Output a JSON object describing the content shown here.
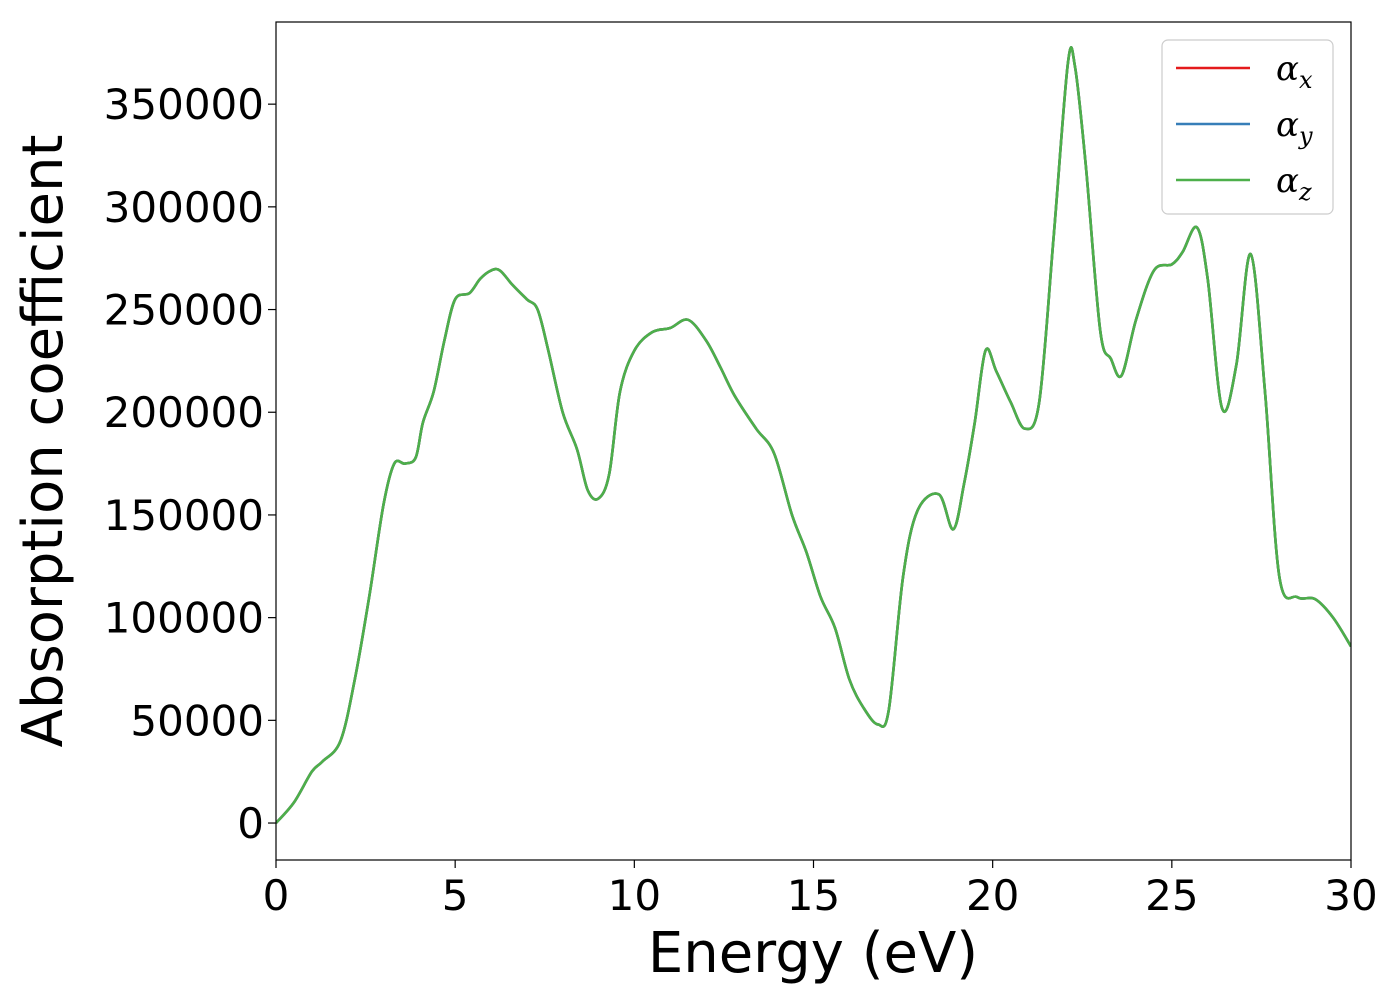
{
  "chart_data": {
    "type": "line",
    "xlabel": "Energy (eV)",
    "ylabel": "Absorption coefficient",
    "xlim": [
      0,
      30
    ],
    "ylim": [
      -18000,
      390000
    ],
    "xticks": [
      0,
      5,
      10,
      15,
      20,
      25,
      30
    ],
    "yticks": [
      0,
      50000,
      100000,
      150000,
      200000,
      250000,
      300000,
      350000
    ],
    "grid": false,
    "legend_position": "top-right",
    "series": [
      {
        "name": "α",
        "subscript": "x",
        "color": "#e41a1c"
      },
      {
        "name": "α",
        "subscript": "y",
        "color": "#377eb8"
      },
      {
        "name": "α",
        "subscript": "z",
        "color": "#4daf4a"
      }
    ],
    "x": [
      0,
      0.5,
      1.0,
      1.3,
      1.8,
      2.2,
      2.6,
      3.0,
      3.3,
      3.6,
      3.9,
      4.1,
      4.4,
      4.7,
      5.0,
      5.4,
      5.7,
      6.0,
      6.25,
      6.6,
      7.0,
      7.3,
      7.6,
      8.0,
      8.4,
      8.7,
      9.0,
      9.3,
      9.6,
      10.0,
      10.5,
      11.0,
      11.5,
      12.0,
      12.4,
      12.8,
      13.4,
      13.9,
      14.4,
      14.8,
      15.2,
      15.6,
      16.0,
      16.4,
      16.8,
      17.1,
      17.5,
      17.9,
      18.5,
      18.9,
      19.2,
      19.5,
      19.8,
      20.1,
      20.5,
      20.9,
      21.3,
      21.7,
      22.1,
      22.3,
      22.6,
      23.0,
      23.3,
      23.6,
      24.0,
      24.5,
      25.0,
      25.3,
      25.7,
      26.0,
      26.4,
      26.8,
      27.2,
      27.6,
      28.0,
      28.5,
      29.0,
      29.5,
      30.0
    ],
    "values": [
      0,
      10000,
      25000,
      30000,
      40000,
      70000,
      110000,
      155000,
      175000,
      175000,
      178000,
      195000,
      210000,
      235000,
      255000,
      258000,
      265000,
      269000,
      269000,
      262000,
      255000,
      250000,
      230000,
      200000,
      182000,
      162000,
      158000,
      170000,
      210000,
      230000,
      239000,
      241000,
      245000,
      235000,
      222000,
      208000,
      192000,
      180000,
      150000,
      132000,
      110000,
      95000,
      70000,
      56000,
      48000,
      55000,
      120000,
      152000,
      160000,
      143000,
      165000,
      195000,
      230000,
      220000,
      205000,
      192000,
      205000,
      285000,
      370000,
      368000,
      320000,
      240000,
      226000,
      218000,
      245000,
      269000,
      272000,
      278000,
      290000,
      265000,
      202000,
      223000,
      277000,
      210000,
      120000,
      110000,
      109000,
      100000,
      86000
    ]
  }
}
